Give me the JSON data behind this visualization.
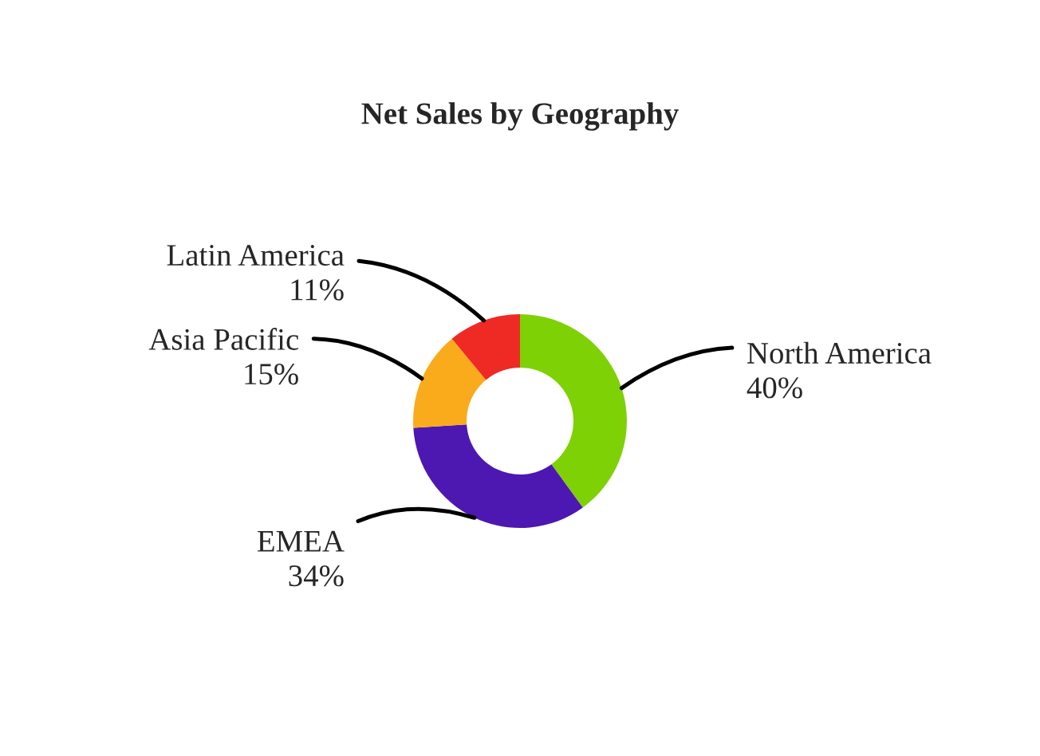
{
  "chart_data": {
    "type": "donut",
    "title": "Net Sales by Geography",
    "categories": [
      "North America",
      "EMEA",
      "Asia Pacific",
      "Latin America"
    ],
    "values": [
      40,
      34,
      15,
      11
    ],
    "value_labels": [
      "40%",
      "34%",
      "15%",
      "11%"
    ],
    "colors": [
      "#7ed104",
      "#4d17b1",
      "#faab1b",
      "#ef2a25"
    ]
  }
}
